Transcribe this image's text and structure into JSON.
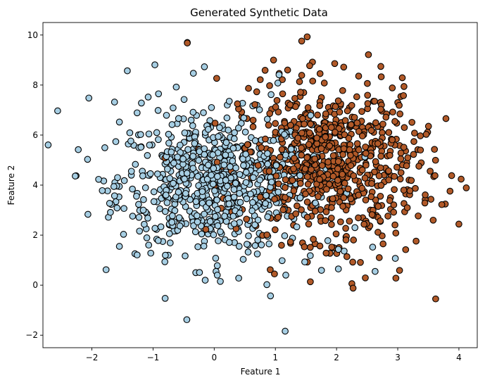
{
  "chart_data": {
    "type": "scatter",
    "title": "Generated Synthetic Data",
    "xlabel": "Feature 1",
    "ylabel": "Feature 2",
    "xlim": [
      -2.8,
      4.3
    ],
    "ylim": [
      -2.5,
      10.5
    ],
    "xticks": [
      -2,
      -1,
      0,
      1,
      2,
      3,
      4
    ],
    "yticks": [
      -2,
      0,
      2,
      4,
      6,
      8,
      10
    ],
    "grid": false,
    "marker_edge_color": "#000000",
    "series": [
      {
        "color": "#a6cee3",
        "class_label": 0,
        "points": [
          [
            -2.56,
            6.97
          ],
          [
            -2.05,
            7.48
          ],
          [
            -2.07,
            5.03
          ],
          [
            -1.89,
            4.23
          ],
          [
            -1.83,
            3.78
          ],
          [
            -1.71,
            3.27
          ],
          [
            -1.58,
            4.3
          ],
          [
            -1.42,
            8.57
          ],
          [
            -1.26,
            6.89
          ],
          [
            -1.26,
            1.21
          ],
          [
            -1.16,
            3.0
          ],
          [
            -0.97,
            8.81
          ],
          [
            -0.72,
            1.69
          ],
          [
            -0.62,
            7.92
          ],
          [
            -0.44,
            9.7
          ],
          [
            -0.16,
            8.73
          ],
          [
            -0.17,
            1.56
          ],
          [
            0.03,
            0.55
          ],
          [
            0.05,
            0.4
          ],
          [
            0.1,
            0.15
          ],
          [
            0.4,
            0.28
          ],
          [
            0.86,
            0.02
          ],
          [
            0.92,
            -0.43
          ],
          [
            1.16,
            -1.84
          ],
          [
            1.11,
            0.98
          ],
          [
            1.17,
            0.4
          ],
          [
            1.48,
            0.93
          ],
          [
            1.57,
            1.18
          ],
          [
            2.03,
            0.65
          ],
          [
            2.03,
            1.43
          ],
          [
            2.3,
            2.3
          ],
          [
            2.59,
            1.52
          ],
          [
            2.63,
            0.55
          ],
          [
            2.96,
            1.07
          ],
          [
            1.04,
            8.08
          ],
          [
            1.06,
            8.41
          ],
          [
            0.93,
            7.62
          ],
          [
            -1.63,
            7.32
          ],
          [
            -1.55,
            6.52
          ],
          [
            -1.38,
            6.09
          ],
          [
            -1.19,
            7.28
          ],
          [
            -1.08,
            7.52
          ],
          [
            -0.91,
            7.65
          ],
          [
            -0.78,
            6.79
          ],
          [
            -0.69,
            6.42
          ]
        ]
      },
      {
        "color": "#b15928",
        "class_label": 1,
        "points": [
          [
            -0.44,
            9.68
          ],
          [
            1.43,
            9.76
          ],
          [
            1.52,
            9.93
          ],
          [
            0.97,
            9.0
          ],
          [
            1.97,
            8.86
          ],
          [
            0.04,
            8.27
          ],
          [
            2.73,
            8.33
          ],
          [
            1.2,
            8.6
          ],
          [
            0.56,
            7.87
          ],
          [
            3.61,
            4.38
          ],
          [
            3.45,
            3.61
          ],
          [
            3.72,
            3.22
          ],
          [
            4.12,
            3.89
          ],
          [
            4.0,
            2.44
          ],
          [
            3.58,
            2.6
          ],
          [
            3.62,
            -0.55
          ],
          [
            2.97,
            0.28
          ],
          [
            3.03,
            0.59
          ],
          [
            2.25,
            0.06
          ],
          [
            2.27,
            -0.12
          ],
          [
            2.47,
            0.29
          ],
          [
            3.13,
            1.42
          ],
          [
            3.3,
            1.76
          ],
          [
            2.39,
            0.91
          ],
          [
            2.76,
            1.65
          ],
          [
            1.92,
            1.52
          ],
          [
            1.62,
            1.84
          ],
          [
            3.37,
            5.97
          ],
          [
            3.05,
            5.05
          ],
          [
            2.91,
            5.81
          ],
          [
            2.51,
            7.26
          ],
          [
            2.33,
            7.53
          ],
          [
            2.1,
            7.78
          ],
          [
            1.8,
            8.08
          ],
          [
            1.43,
            8.39
          ],
          [
            1.24,
            7.21
          ],
          [
            0.38,
            7.25
          ]
        ]
      }
    ]
  }
}
